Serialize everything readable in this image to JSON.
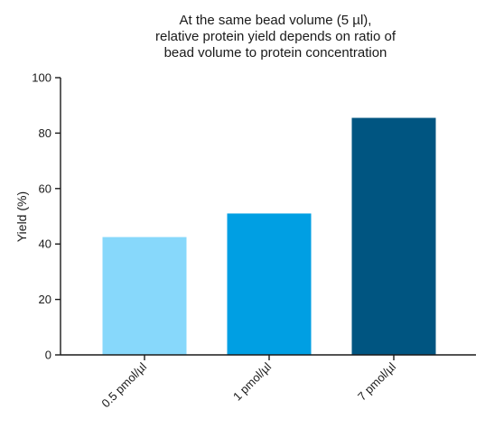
{
  "chart_data": {
    "type": "bar",
    "title_lines": [
      "At the same bead volume (5 µl),",
      "relative protein yield depends on ratio of",
      "bead volume to protein concentration"
    ],
    "xlabel": "",
    "ylabel": "Yield (%)",
    "ylim": [
      0,
      100
    ],
    "yticks": [
      0,
      20,
      40,
      60,
      80,
      100
    ],
    "grid": false,
    "legend": "none",
    "categories": [
      "0.5 pmol/µl",
      "1 pmol/µl",
      "7 pmol/µl"
    ],
    "values": [
      42.5,
      51,
      85.5
    ],
    "bar_colors": [
      "#87d8fb",
      "#009fe3",
      "#005581"
    ]
  }
}
